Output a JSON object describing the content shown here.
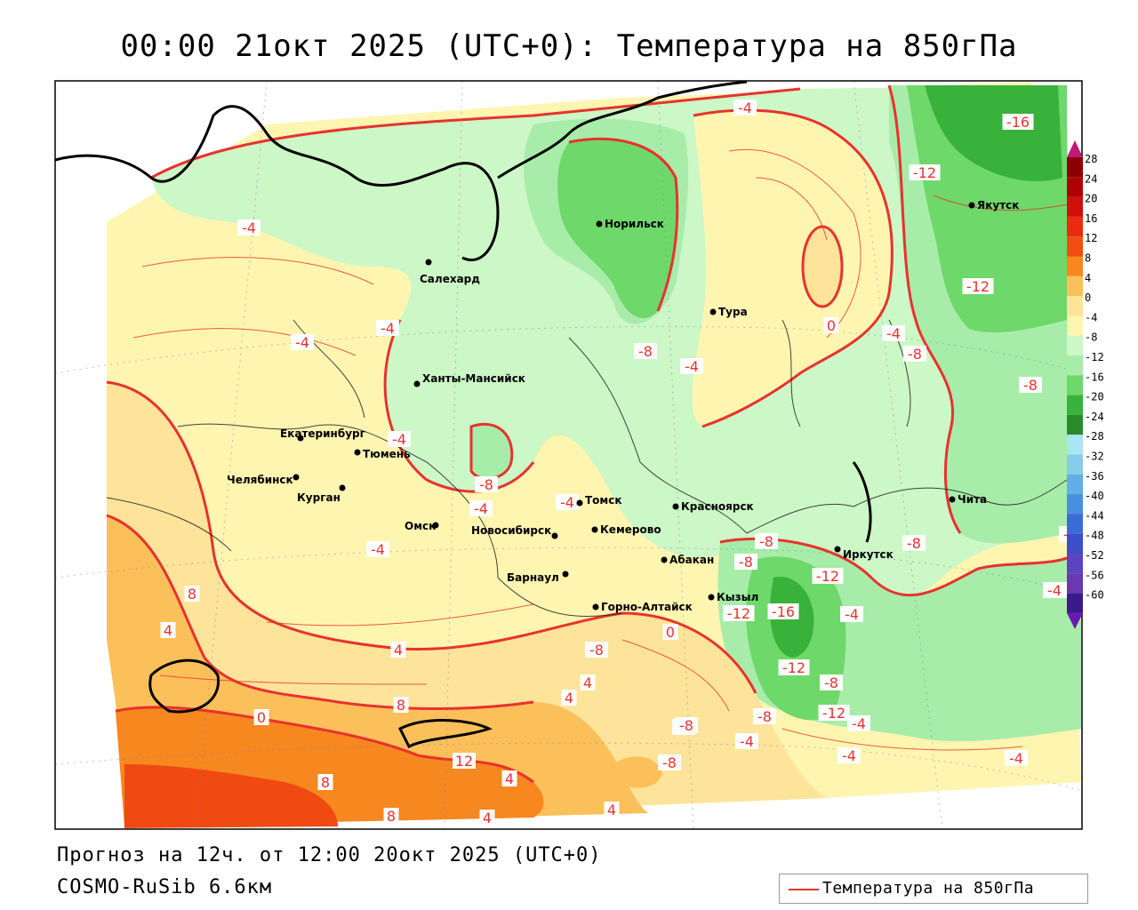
{
  "title": "00:00 21окт 2025 (UTC+0): Температура на 850гПа",
  "footer": {
    "forecast": "Прогноз на 12ч. от 12:00 20окт 2025 (UTC+0)",
    "model": "COSMO-RuSib 6.6км"
  },
  "legend": {
    "label": "Температура на 850гПа",
    "line_color": "#e8322e"
  },
  "colors": {
    "contour": "#e8322e",
    "band_16_20": "#38b23a",
    "band_12_16": "#6ed86a",
    "band_8_12": "#a8ecaa",
    "band_4_8": "#ccf7c6",
    "band_0_4": "#fef5b1",
    "band_p0_p4": "#fde49a",
    "band_p4_p8": "#fcc05a",
    "band_p8_p12": "#f7871f",
    "band_p12_p16": "#f04a12",
    "frame": "#000000"
  },
  "colorbar": {
    "ticks": [
      "28",
      "24",
      "20",
      "16",
      "12",
      "8",
      "4",
      "0",
      "-4",
      "-8",
      "-12",
      "-16",
      "-20",
      "-24",
      "-28",
      "-32",
      "-36",
      "-40",
      "-44",
      "-48",
      "-52",
      "-56",
      "-60"
    ],
    "colors": [
      "#8b0000",
      "#b00000",
      "#d01008",
      "#ec2a10",
      "#f24e14",
      "#f7871f",
      "#fcc05a",
      "#fde49a",
      "#fef5b1",
      "#ccf7c6",
      "#a8ecaa",
      "#6ed86a",
      "#38b23a",
      "#2a8a2c",
      "#a8e6f4",
      "#86ccee",
      "#64aee6",
      "#4a8ee0",
      "#3a6cd8",
      "#3c4ec8",
      "#5c44c0",
      "#6a38b0",
      "#3b1a8c"
    ],
    "top_arrow_color": "#c2187a",
    "bottom_arrow_color": "#6a1ab0"
  },
  "cities": [
    {
      "name": "Норильск"
    },
    {
      "name": "Якутск"
    },
    {
      "name": "Салехард"
    },
    {
      "name": "Тура"
    },
    {
      "name": "Ханты-Мансийск"
    },
    {
      "name": "Екатеринбург"
    },
    {
      "name": "Тюмень"
    },
    {
      "name": "Челябинск"
    },
    {
      "name": "Курган"
    },
    {
      "name": "Омск"
    },
    {
      "name": "Томск"
    },
    {
      "name": "Новосибирск"
    },
    {
      "name": "Кемерово"
    },
    {
      "name": "Красноярск"
    },
    {
      "name": "Барнаул"
    },
    {
      "name": "Абакан"
    },
    {
      "name": "Иркутск"
    },
    {
      "name": "Чита"
    },
    {
      "name": "Кызыл"
    },
    {
      "name": "Горно-Алтайск"
    }
  ],
  "contour_labels": [
    "-4",
    "-16",
    "-12",
    "-4",
    "-12",
    "-4",
    "0",
    "-4",
    "-8",
    "-4",
    "-4",
    "-8",
    "-8",
    "-4",
    "-8",
    "-4",
    "-4",
    "-4",
    "-8",
    "-8",
    "-8",
    "-12",
    "-16",
    "-12",
    "-8",
    "-4",
    "-12",
    "-8",
    "-12",
    "-8",
    "-4",
    "-8",
    "-4",
    "-4",
    "-4",
    "-8",
    "0",
    "4",
    "8",
    "4",
    "0",
    "4",
    "8",
    "12",
    "8",
    "4",
    "8",
    "4",
    "4",
    "4",
    "-8",
    "-4",
    "-8",
    "-4"
  ]
}
